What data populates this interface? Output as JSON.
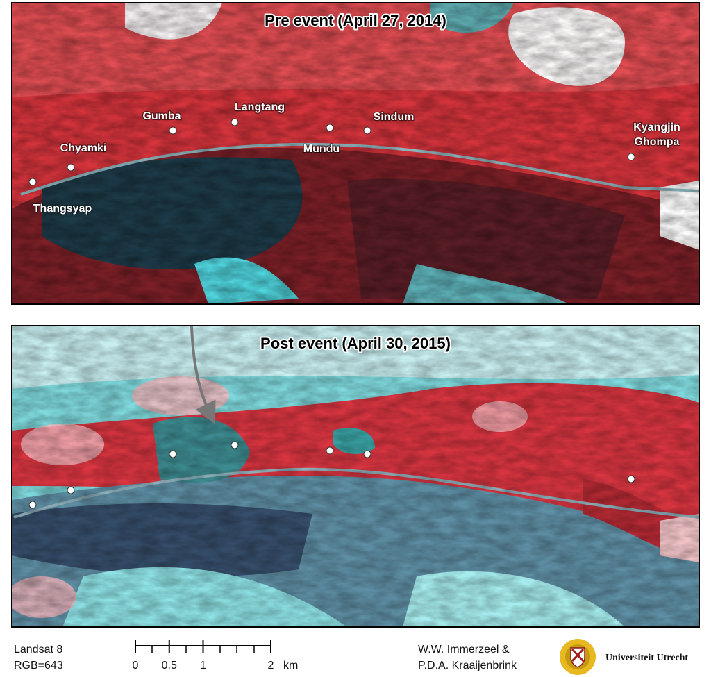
{
  "panels": [
    {
      "title": "Pre event (April 27, 2014)",
      "places": [
        {
          "lines": [
            "Thangsyap"
          ]
        },
        {
          "lines": [
            "Chyamki"
          ]
        },
        {
          "lines": [
            "Gumba"
          ]
        },
        {
          "lines": [
            "Langtang"
          ]
        },
        {
          "lines": [
            "Mundu"
          ]
        },
        {
          "lines": [
            "Sindum"
          ]
        },
        {
          "lines": [
            "Kyangjin",
            "Ghompa"
          ]
        }
      ]
    },
    {
      "title": "Post event (April 30, 2015)"
    }
  ],
  "footer": {
    "sensor": [
      "Landsat 8",
      "RGB=643"
    ],
    "scale": {
      "ticks": [
        0,
        0.5,
        1,
        2
      ],
      "unit": "km"
    },
    "credits": [
      "W.W. Immerzeel &",
      "P.D.A. Kraaijenbrink"
    ],
    "institution": "Universiteit Utrecht"
  }
}
